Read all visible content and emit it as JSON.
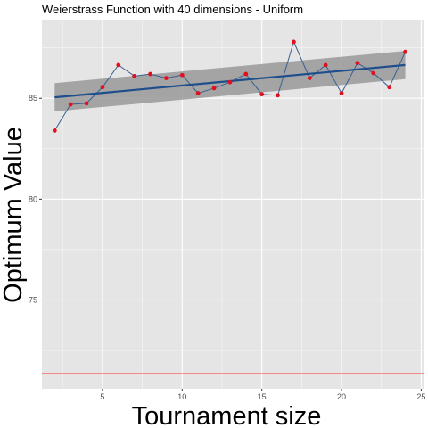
{
  "chart_data": {
    "type": "line",
    "title": "Weierstrass Function with 40 dimensions -  Uniform",
    "xlabel": "Tournament size",
    "ylabel": "Optimum Value",
    "xlim": [
      1.2,
      25.2
    ],
    "ylim": [
      70.6,
      88.9
    ],
    "x_ticks": [
      5,
      10,
      15,
      20,
      25
    ],
    "y_ticks": [
      75,
      80,
      85
    ],
    "grid": true,
    "background": "#e5e5e5",
    "grid_color": "#ffffff",
    "series": [
      {
        "values_x": [
          2,
          3,
          4,
          5,
          6,
          7,
          8,
          9,
          10,
          11,
          12,
          13,
          14,
          15,
          16,
          17,
          18,
          19,
          20,
          21,
          22,
          23,
          24
        ],
        "values_y": [
          83.4,
          84.7,
          84.75,
          85.55,
          86.65,
          86.1,
          86.2,
          86.0,
          86.15,
          85.25,
          85.5,
          85.8,
          86.2,
          85.2,
          85.15,
          87.8,
          86.0,
          86.65,
          85.25,
          86.75,
          86.25,
          85.55,
          87.3
        ],
        "line_color": "#3a5f8f",
        "point_color": "#e0101f"
      }
    ],
    "trend": {
      "x": [
        2,
        24
      ],
      "y": [
        85.05,
        86.65
      ],
      "band_lower": [
        84.35,
        85.95
      ],
      "band_upper": [
        85.75,
        87.35
      ],
      "line_color": "#1f4e8c",
      "band_color": "#999999"
    },
    "hline": {
      "y": 71.35,
      "color": "#ff2a2a"
    }
  }
}
